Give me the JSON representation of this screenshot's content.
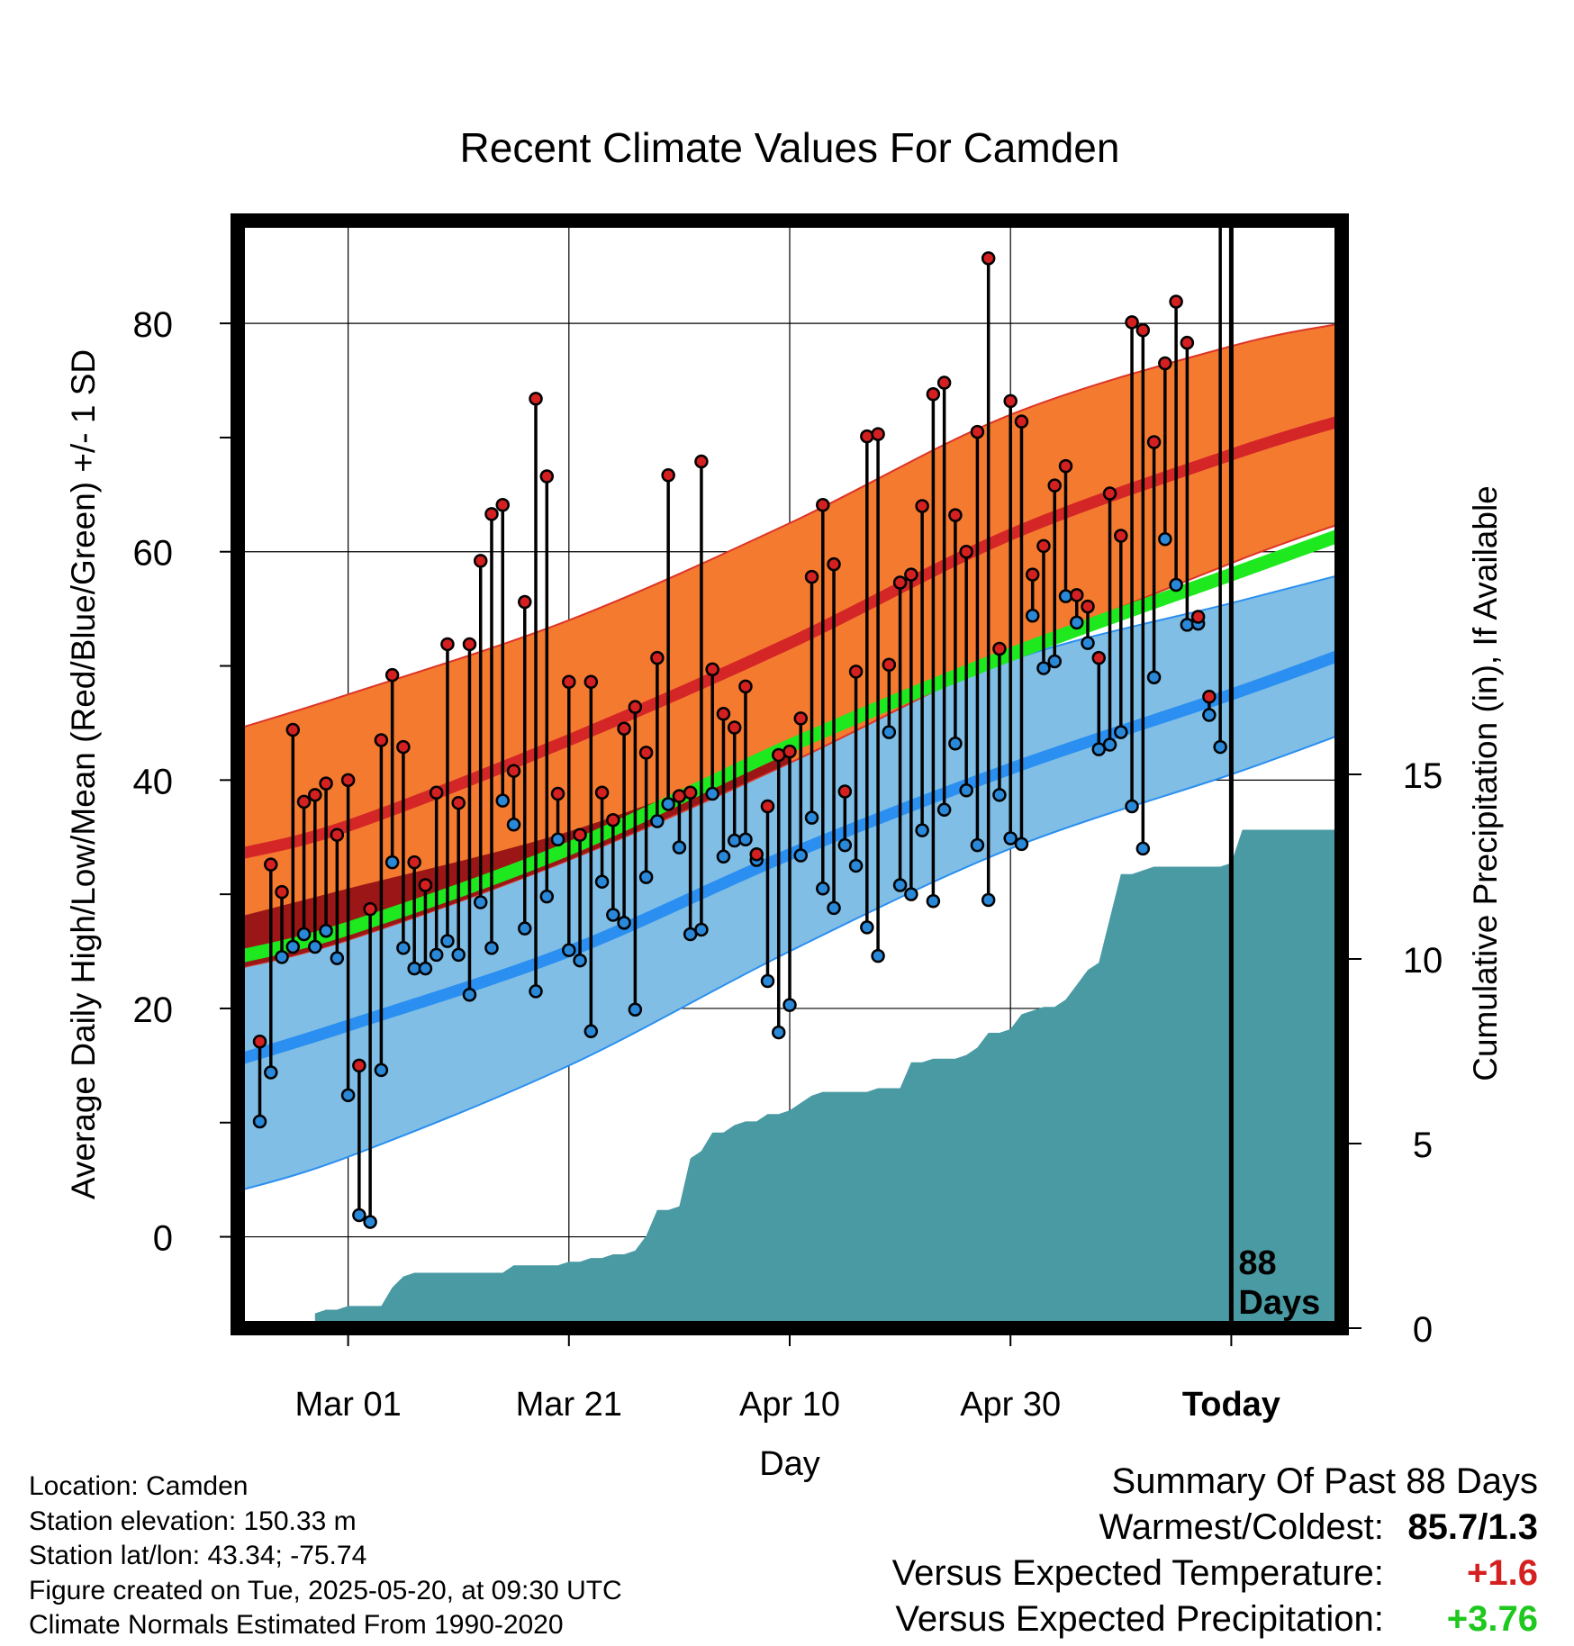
{
  "chart_data": {
    "type": "line",
    "title": "Recent Climate Values For Camden",
    "xlabel": "Day",
    "ylabel": "Average Daily High/Low/Mean (Red/Blue/Green) +/- 1 SD",
    "y2label": "Cumulative Precipitation (in), If Available",
    "x_tick_labels": [
      "Mar 01",
      "Mar 21",
      "Apr 10",
      "Apr 30",
      "Today"
    ],
    "y_ticks": [
      0,
      20,
      40,
      60,
      80
    ],
    "y2_ticks": [
      0,
      5,
      10,
      15
    ],
    "ylim": [
      -8,
      89
    ],
    "y2lim": [
      0,
      30
    ],
    "today_marker": {
      "label_line1": "88",
      "label_line2": "Days"
    },
    "normals": {
      "days": [
        -10,
        0,
        20,
        40,
        60,
        80,
        90
      ],
      "high_mean": [
        33.5,
        36,
        43.5,
        52,
        61.5,
        68.5,
        71.5
      ],
      "high_upper": [
        44.5,
        47.5,
        54,
        62.5,
        72,
        78,
        80
      ],
      "high_lower": [
        23.5,
        26,
        33,
        41.5,
        51,
        59,
        62.5
      ],
      "low_mean": [
        15.5,
        18.5,
        25,
        33.5,
        41,
        47.5,
        51
      ],
      "low_upper": [
        28,
        30.5,
        35.5,
        42.5,
        50.5,
        55.5,
        58
      ],
      "low_lower": [
        4,
        7,
        15,
        25,
        34,
        40.5,
        44
      ],
      "avg_mean": [
        24.5,
        27,
        34,
        43,
        51,
        58,
        61.5
      ]
    },
    "series": [
      {
        "name": "High",
        "day_offsets": [
          -8,
          -7,
          -6,
          -5,
          -4,
          -3,
          -2,
          -1,
          0,
          1,
          2,
          3,
          4,
          5,
          6,
          7,
          8,
          9,
          10,
          11,
          12,
          13,
          14,
          15,
          16,
          17,
          18,
          19,
          20,
          21,
          22,
          23,
          24,
          25,
          26,
          27,
          28,
          29,
          30,
          31,
          32,
          33,
          34,
          35,
          36,
          37,
          38,
          39,
          40,
          41,
          42,
          43,
          44,
          45,
          46,
          47,
          48,
          49,
          50,
          51,
          52,
          53,
          54,
          55,
          56,
          57,
          58,
          59,
          60,
          61,
          62,
          63,
          64,
          65,
          66,
          67,
          68,
          69,
          70,
          71,
          72,
          73,
          74,
          75,
          76,
          77,
          78,
          79
        ],
        "values": [
          17.1,
          32.6,
          30.2,
          44.4,
          38.1,
          38.7,
          39.7,
          35.2,
          40.0,
          15.0,
          28.7,
          43.5,
          49.2,
          42.9,
          32.8,
          30.8,
          38.9,
          51.9,
          38.0,
          51.9,
          59.2,
          63.3,
          64.1,
          40.8,
          55.6,
          73.4,
          66.6,
          38.8,
          48.6,
          35.2,
          48.6,
          38.9,
          36.5,
          44.5,
          46.4,
          42.4,
          50.7,
          66.7,
          38.6,
          38.9,
          67.9,
          49.7,
          45.8,
          44.6,
          48.2,
          33.5,
          37.7,
          42.2,
          42.5,
          45.4,
          57.8,
          64.1,
          58.9,
          39.0,
          49.5,
          70.1,
          70.3,
          50.1,
          57.3,
          58.0,
          64.0,
          73.8,
          74.8,
          63.2,
          60.0,
          70.5,
          85.7,
          51.5,
          73.2,
          71.4,
          58.0,
          60.5,
          65.8,
          67.5,
          56.2,
          55.2,
          50.7,
          65.1,
          61.4,
          80.1,
          79.4,
          69.6,
          76.5,
          81.9,
          78.3,
          54.3,
          47.3
        ]
      },
      {
        "name": "Low",
        "day_offsets": [
          -8,
          -7,
          -6,
          -5,
          -4,
          -3,
          -2,
          -1,
          0,
          1,
          2,
          3,
          4,
          5,
          6,
          7,
          8,
          9,
          10,
          11,
          12,
          13,
          14,
          15,
          16,
          17,
          18,
          19,
          20,
          21,
          22,
          23,
          24,
          25,
          26,
          27,
          28,
          29,
          30,
          31,
          32,
          33,
          34,
          35,
          36,
          37,
          38,
          39,
          40,
          41,
          42,
          43,
          44,
          45,
          46,
          47,
          48,
          49,
          50,
          51,
          52,
          53,
          54,
          55,
          56,
          57,
          58,
          59,
          60,
          61,
          62,
          63,
          64,
          65,
          66,
          67,
          68,
          69,
          70,
          71,
          72,
          73,
          74,
          75,
          76,
          77,
          78,
          79
        ],
        "values": [
          10.1,
          14.4,
          24.5,
          25.4,
          26.5,
          25.4,
          26.8,
          24.4,
          12.4,
          1.9,
          1.3,
          14.6,
          32.8,
          25.3,
          23.5,
          23.5,
          24.7,
          25.9,
          24.7,
          21.2,
          29.3,
          25.3,
          38.2,
          36.1,
          27.0,
          21.5,
          29.8,
          34.8,
          25.1,
          24.2,
          18.0,
          31.1,
          28.2,
          27.5,
          19.9,
          31.5,
          36.4,
          37.9,
          34.1,
          26.5,
          26.9,
          38.8,
          33.3,
          34.7,
          34.8,
          33.0,
          22.4,
          17.9,
          20.3,
          33.4,
          36.7,
          30.5,
          28.8,
          34.3,
          32.5,
          27.1,
          24.6,
          44.2,
          30.8,
          30.0,
          35.6,
          29.4,
          37.4,
          43.2,
          39.1,
          34.3,
          29.5,
          38.7,
          34.9,
          34.4,
          54.4,
          49.8,
          50.4,
          56.1,
          53.8,
          52.0,
          42.7,
          43.1,
          44.2,
          37.7,
          34.0,
          49.0,
          61.1,
          57.1,
          53.6,
          53.7,
          45.7,
          42.9
        ]
      },
      {
        "name": "Cumulative Precipitation",
        "day_offsets": [
          -3,
          -2,
          -1,
          0,
          1,
          2,
          3,
          4,
          5,
          6,
          7,
          8,
          9,
          10,
          11,
          12,
          13,
          14,
          15,
          16,
          17,
          18,
          19,
          20,
          21,
          22,
          23,
          24,
          25,
          26,
          27,
          28,
          29,
          30,
          31,
          32,
          33,
          34,
          35,
          36,
          37,
          38,
          39,
          40,
          41,
          42,
          43,
          44,
          45,
          46,
          47,
          48,
          49,
          50,
          51,
          52,
          53,
          54,
          55,
          56,
          57,
          58,
          59,
          60,
          61,
          62,
          63,
          64,
          65,
          66,
          67,
          68,
          69,
          70,
          71,
          72,
          73,
          74,
          75,
          76,
          77,
          78,
          79,
          80,
          81,
          82,
          83,
          84,
          85,
          86,
          87,
          88,
          89,
          90
        ],
        "values": [
          0.4,
          0.5,
          0.5,
          0.6,
          0.6,
          0.6,
          0.6,
          1.1,
          1.4,
          1.5,
          1.5,
          1.5,
          1.5,
          1.5,
          1.5,
          1.5,
          1.5,
          1.5,
          1.7,
          1.7,
          1.7,
          1.7,
          1.7,
          1.8,
          1.8,
          1.9,
          1.9,
          2.0,
          2.0,
          2.1,
          2.5,
          3.2,
          3.2,
          3.3,
          4.6,
          4.8,
          5.3,
          5.3,
          5.5,
          5.6,
          5.6,
          5.8,
          5.8,
          5.9,
          6.1,
          6.3,
          6.4,
          6.4,
          6.4,
          6.4,
          6.4,
          6.5,
          6.5,
          6.5,
          7.2,
          7.2,
          7.3,
          7.3,
          7.3,
          7.4,
          7.6,
          8.0,
          8.0,
          8.1,
          8.5,
          8.6,
          8.7,
          8.7,
          8.9,
          9.3,
          9.7,
          9.9,
          11.1,
          12.3,
          12.3,
          12.4,
          12.5,
          12.5,
          12.5,
          12.5,
          12.5,
          12.5,
          12.5,
          12.6,
          13.5,
          13.5,
          13.5,
          13.5,
          13.5,
          13.5,
          13.5,
          13.5,
          13.5,
          13.5
        ]
      }
    ],
    "colors": {
      "high_band": "#f47a30",
      "high_band_edge": "#dd3426",
      "high_mean": "#d42626",
      "low_band": "#80bee6",
      "low_band_edge": "#2a8ff0",
      "low_mean": "#2a8ff0",
      "avg_mean": "#1ee81e",
      "overlap": "#9b1616",
      "precip": "#4a9aa4",
      "high_dot": "#d42020",
      "low_dot": "#2a88d8"
    }
  },
  "info": {
    "location": "Location: Camden",
    "elevation": "Station elevation: 150.33 m",
    "latlon": "Station lat/lon: 43.34; -75.74",
    "created": "Figure created on Tue, 2025-05-20, at 09:30 UTC",
    "normals": "Climate Normals Estimated From 1990-2020"
  },
  "summary": {
    "heading": "Summary Of Past 88 Days",
    "warm_cold_label": "Warmest/Coldest:",
    "warm_cold_value": "85.7/1.3",
    "temp_label": "Versus Expected Temperature:",
    "temp_value": "+1.6",
    "precip_label": "Versus Expected Precipitation:",
    "precip_value": "+3.76"
  }
}
